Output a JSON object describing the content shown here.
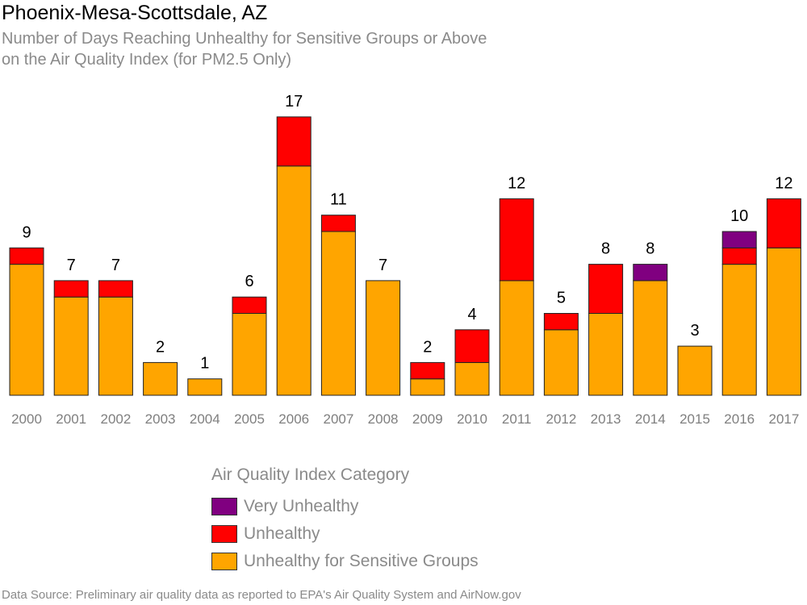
{
  "header": {
    "title": "Phoenix-Mesa-Scottsdale, AZ",
    "subtitle_line1": "Number of Days Reaching Unhealthy for Sensitive Groups or Above",
    "subtitle_line2": "on the Air Quality Index (for PM2.5 Only)"
  },
  "legend": {
    "title": "Air Quality Index Category",
    "items": [
      {
        "label": "Very Unhealthy",
        "color": "#800080"
      },
      {
        "label": "Unhealthy",
        "color": "#ff0000"
      },
      {
        "label": "Unhealthy for Sensitive Groups",
        "color": "#ffa500"
      }
    ]
  },
  "footer": {
    "source": "Data Source: Preliminary air quality data as reported to EPA's Air Quality System and AirNow.gov"
  },
  "chart_data": {
    "type": "bar",
    "stacked": true,
    "categories": [
      "2000",
      "2001",
      "2002",
      "2003",
      "2004",
      "2005",
      "2006",
      "2007",
      "2008",
      "2009",
      "2010",
      "2011",
      "2012",
      "2013",
      "2014",
      "2015",
      "2016",
      "2017"
    ],
    "series": [
      {
        "name": "Unhealthy for Sensitive Groups",
        "color": "#ffa500",
        "values": [
          8,
          6,
          6,
          2,
          1,
          5,
          14,
          10,
          7,
          1,
          2,
          7,
          4,
          5,
          7,
          3,
          8,
          9
        ]
      },
      {
        "name": "Unhealthy",
        "color": "#ff0000",
        "values": [
          1,
          1,
          1,
          0,
          0,
          1,
          3,
          1,
          0,
          1,
          2,
          5,
          1,
          3,
          0,
          0,
          1,
          3
        ]
      },
      {
        "name": "Very Unhealthy",
        "color": "#800080",
        "values": [
          0,
          0,
          0,
          0,
          0,
          0,
          0,
          0,
          0,
          0,
          0,
          0,
          0,
          0,
          1,
          0,
          1,
          0
        ]
      }
    ],
    "totals": [
      9,
      7,
      7,
      2,
      1,
      6,
      17,
      11,
      7,
      2,
      4,
      12,
      5,
      8,
      8,
      3,
      10,
      12
    ],
    "ylim": [
      0,
      17
    ],
    "grid": false,
    "legend_position": "bottom"
  }
}
